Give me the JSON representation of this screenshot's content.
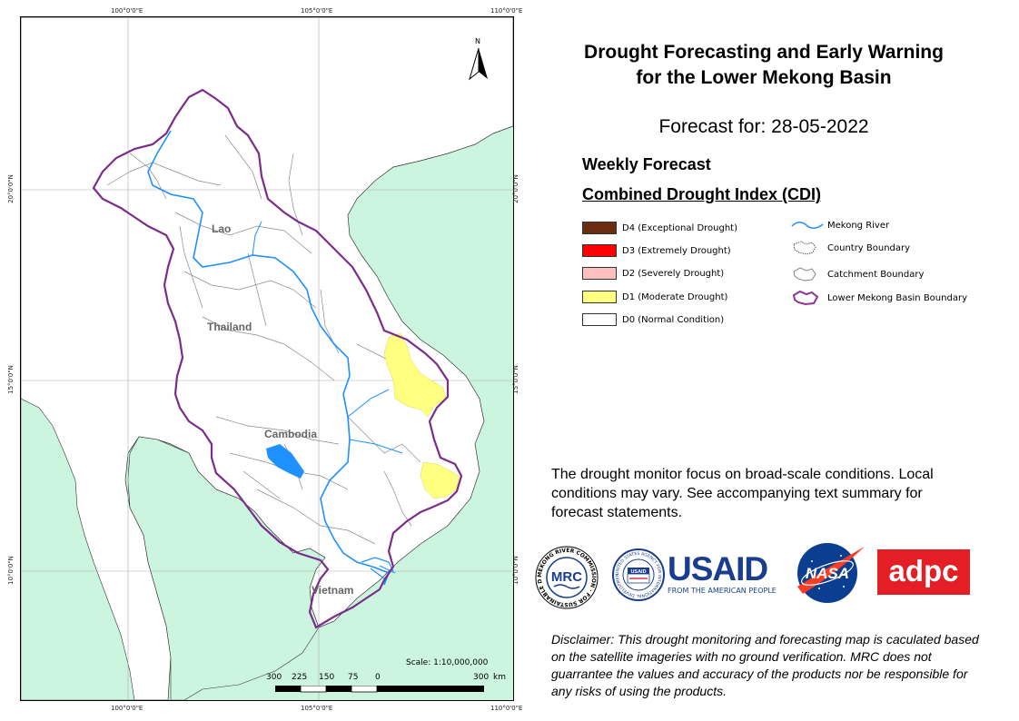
{
  "map": {
    "grid_labels": {
      "top": [
        "100°0'0\"E",
        "105°0'0\"E",
        "110°0'0\"E"
      ],
      "bottom": [
        "100°0'0\"E",
        "105°0'0\"E",
        "110°0'0\"E"
      ],
      "left": [
        "20°0'0\"N",
        "15°0'0\"N",
        "10°0'0\"N"
      ],
      "right": [
        "20°0'0\"N",
        "15°0'0\"N",
        "10°0'0\"N"
      ]
    },
    "north_label": "N",
    "countries": {
      "lao": "Lao",
      "thailand": "Thailand",
      "cambodia": "Cambodia",
      "vietnam": "Vietnam"
    },
    "scale": {
      "text": "Scale: 1:10,000,000",
      "ticks": [
        "300",
        "225",
        "150",
        "75",
        "0",
        "300"
      ],
      "unit": "km"
    },
    "colors": {
      "sea": "#ccf5e0",
      "land": "#ffffff",
      "river": "#1e90ff",
      "basin_boundary": "#7b2d8b",
      "d1": "#ffff80"
    }
  },
  "header": {
    "title_line1": "Drought Forecasting and Early Warning",
    "title_line2": "for the Lower Mekong Basin",
    "forecast_for": "Forecast for: 28-05-2022",
    "weekly": "Weekly Forecast",
    "index_name": "Combined Drought Index (CDI)"
  },
  "legend": {
    "categories": [
      {
        "label": "D4 (Exceptional Drought)",
        "color": "#6b2c0f"
      },
      {
        "label": "D3 (Extremely Drought)",
        "color": "#ff0000"
      },
      {
        "label": "D2 (Severely Drought)",
        "color": "#ffbfbf"
      },
      {
        "label": "D1 (Moderate Drought)",
        "color": "#ffff80"
      },
      {
        "label": "D0 (Normal Condition)",
        "color": "#ffffff"
      }
    ],
    "symbols": [
      {
        "label": "Mekong River",
        "icon": "river-line-icon"
      },
      {
        "label": "Country Boundary",
        "icon": "country-boundary-icon"
      },
      {
        "label": "Catchment Boundary",
        "icon": "catchment-boundary-icon"
      },
      {
        "label": "Lower Mekong Basin Boundary",
        "icon": "basin-boundary-icon"
      }
    ]
  },
  "note": "The drought monitor focus on broad-scale conditions. Local conditions may vary. See accompanying text summary for forecast statements.",
  "logos": {
    "mrc_text": "MRC",
    "mrc_ring": "MEKONG RIVER COMMISSION · FOR SUSTAINABLE DEVELOPMENT ·",
    "usaid_seal_text": "USAID",
    "usaid_ring": "UNITED STATES AGENCY FOR INTERNATIONAL DEVELOPMENT",
    "usaid_main": "USAID",
    "usaid_sub": "FROM THE AMERICAN PEOPLE",
    "nasa": "NASA",
    "adpc": "adpc"
  },
  "disclaimer": "Disclaimer: This drought monitoring and forecasting map is caculated based on the satellite imageries with no ground verification. MRC does not guarrantee the values and accuracy of the products nor be responsible for any risks of using the products."
}
